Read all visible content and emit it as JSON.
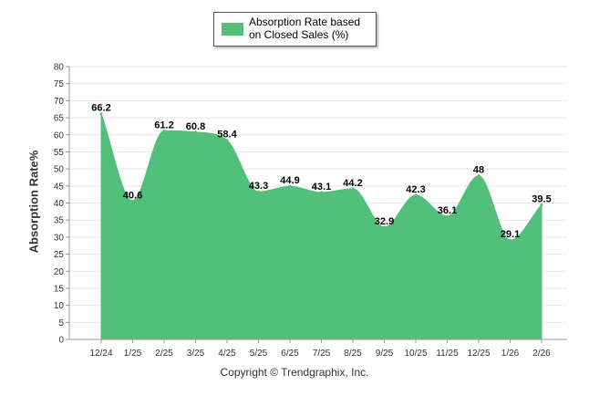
{
  "chart_data": {
    "type": "area",
    "categories": [
      "12/24",
      "1/25",
      "2/25",
      "3/25",
      "4/25",
      "5/25",
      "6/25",
      "7/25",
      "8/25",
      "9/25",
      "10/25",
      "11/25",
      "12/25",
      "1/26",
      "2/26"
    ],
    "series": [
      {
        "name": "Absorption Rate based on Closed Sales (%)",
        "values": [
          66.2,
          40.6,
          61.2,
          60.8,
          58.4,
          43.3,
          44.9,
          43.1,
          44.2,
          32.9,
          42.3,
          36.1,
          48,
          29.1,
          39.5
        ],
        "labels": [
          "66.2",
          "40.6",
          "61.2",
          "60.8",
          "58.4",
          "43.3",
          "44.9",
          "43.1",
          "44.2",
          "32.9",
          "42.3",
          "36.1",
          "48",
          "29.1",
          "39.5"
        ]
      }
    ],
    "ylabel": "Absorption Rate%",
    "xlabel": "",
    "ylim": [
      0,
      80
    ],
    "yticks": [
      0,
      5,
      10,
      15,
      20,
      25,
      30,
      35,
      40,
      45,
      50,
      55,
      60,
      65,
      70,
      75,
      80
    ],
    "grid": true,
    "legend_position": "top-center"
  },
  "colors": {
    "fill": "#52bf7a",
    "axis": "#999999",
    "grid": "#e6e6e6",
    "text": "#333333"
  },
  "legend": {
    "label": "Absorption Rate based on Closed Sales (%)"
  },
  "footer": {
    "copyright": "Copyright © Trendgraphix, Inc."
  }
}
